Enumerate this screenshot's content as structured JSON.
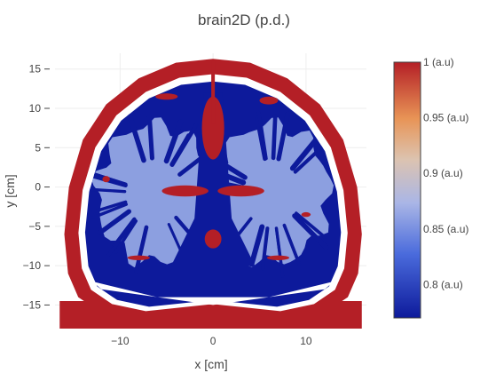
{
  "chart_data": {
    "type": "heatmap",
    "title": "brain2D (p.d.)",
    "xlabel": "x [cm]",
    "ylabel": "y [cm]",
    "xlim": [
      -17,
      16.5
    ],
    "ylim": [
      -18,
      17
    ],
    "x_ticks": [
      -10,
      0,
      10
    ],
    "x_tick_labels": [
      "−10",
      "0",
      "10"
    ],
    "y_ticks": [
      15,
      10,
      5,
      0,
      -5,
      -10,
      -15
    ],
    "y_tick_labels": [
      "15",
      "10",
      "5",
      "0",
      "−5",
      "−10",
      "−15"
    ],
    "grid": true,
    "colorscale": [
      [
        0.0,
        "#0d1a9b"
      ],
      [
        0.25,
        "#4a6bdc"
      ],
      [
        0.45,
        "#aab6e6"
      ],
      [
        0.62,
        "#dcc3b0"
      ],
      [
        0.78,
        "#e89456"
      ],
      [
        1.0,
        "#b41f26"
      ]
    ],
    "colorbar": {
      "min": 0.77,
      "max": 1.0,
      "ticks": [
        1.0,
        0.95,
        0.9,
        0.85,
        0.8
      ],
      "tick_labels": [
        "1 (a.u)",
        "0.95 (a.u)",
        "0.9 (a.u)",
        "0.85 (a.u)",
        "0.8 (a.u)"
      ]
    },
    "tissue_values": {
      "background": null,
      "skull_scalp": 1.0,
      "csf": 1.0,
      "gray_matter": 0.81,
      "white_matter": 0.865,
      "deep_structures": 0.78
    }
  },
  "colors": {
    "skull": "#b41f26",
    "gray_matter": "#0d1a9b",
    "white_matter": "#8c9fe0",
    "gap": "#ffffff",
    "grid": "#eeeeee"
  }
}
